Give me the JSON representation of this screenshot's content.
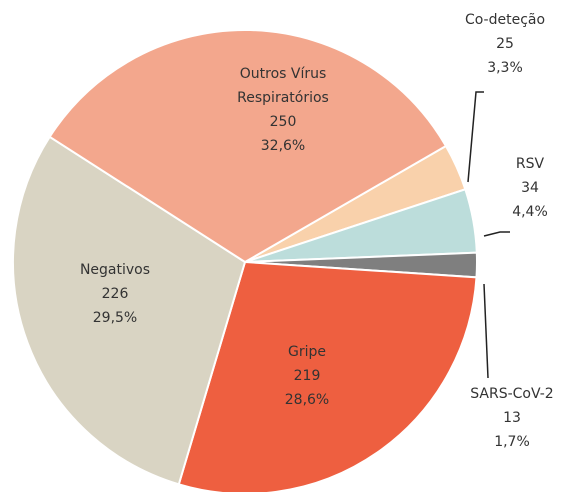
{
  "chart_data": {
    "type": "pie",
    "categories": [
      "Co-deteção",
      "RSV",
      "SARS-CoV-2",
      "Gripe",
      "Negativos",
      "Outros Vírus Respiratórios"
    ],
    "values": [
      25,
      34,
      13,
      219,
      226,
      250
    ],
    "shares": [
      {
        "value": 3.3,
        "label": "3,3%"
      },
      {
        "value": 4.4,
        "label": "4,4%"
      },
      {
        "value": 1.7,
        "label": "1,7%"
      },
      {
        "value": 28.6,
        "label": "28,6%"
      },
      {
        "value": 29.5,
        "label": "29,5%"
      },
      {
        "value": 32.6,
        "label": "32,6%"
      }
    ],
    "colors": [
      "#f9d1ab",
      "#bcdddb",
      "#7f7f7f",
      "#ee5f40",
      "#d9d4c3",
      "#f3a78d"
    ]
  }
}
